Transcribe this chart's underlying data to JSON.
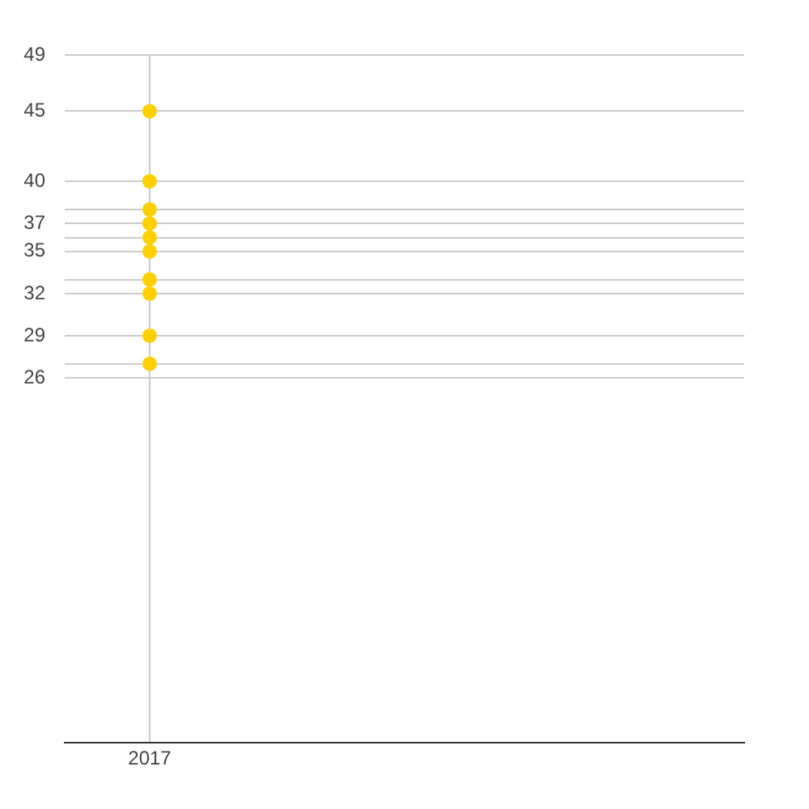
{
  "chart_data": {
    "type": "scatter",
    "categories": [
      "2017",
      null,
      null,
      null
    ],
    "series": [
      {
        "color": "#ffd000",
        "values": [
          45,
          null,
          null,
          null
        ]
      },
      {
        "color": "#ffd000",
        "values": [
          40,
          null,
          null,
          null
        ]
      },
      {
        "color": "#ffd000",
        "values": [
          38,
          null,
          null,
          null
        ]
      },
      {
        "color": "#ffd000",
        "values": [
          37,
          null,
          null,
          null
        ]
      },
      {
        "color": "#ffd000",
        "values": [
          36,
          null,
          null,
          null
        ]
      },
      {
        "color": "#ffd000",
        "values": [
          35,
          null,
          null,
          null
        ]
      },
      {
        "color": "#ffd000",
        "values": [
          33,
          null,
          null,
          null
        ]
      },
      {
        "color": "#ffd000",
        "values": [
          32,
          null,
          null,
          null
        ]
      },
      {
        "color": "#ffd000",
        "values": [
          29,
          null,
          null,
          null
        ]
      },
      {
        "color": "#ffd000",
        "values": [
          27,
          null,
          null,
          null
        ]
      }
    ],
    "ylim": [
      0,
      49
    ],
    "yticks": [
      49,
      45,
      40,
      {
        "value": 38,
        "label": null
      },
      37,
      {
        "value": 36,
        "label": null
      },
      35,
      {
        "value": 33,
        "label": null
      },
      32,
      29,
      {
        "value": 27,
        "label": null
      },
      26
    ],
    "grid": true,
    "marker": "circle"
  }
}
